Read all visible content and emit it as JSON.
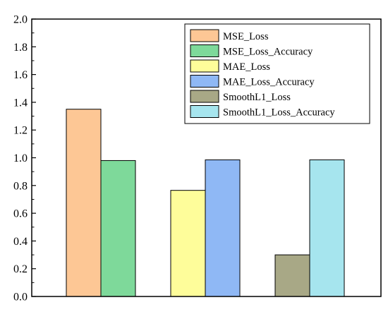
{
  "chart_data": {
    "type": "bar",
    "title": "",
    "xlabel": "",
    "ylabel": "",
    "ylim": [
      0,
      2.0
    ],
    "yticks": [
      "0.0",
      "0.2",
      "0.4",
      "0.6",
      "0.8",
      "1.0",
      "1.2",
      "1.4",
      "1.6",
      "1.8",
      "2.0"
    ],
    "grid": false,
    "legend_position": "top-right",
    "groups": [
      {
        "bars": [
          {
            "series": "MSE_Loss",
            "value": 1.35
          },
          {
            "series": "MSE_Loss_Accuracy",
            "value": 0.98
          }
        ]
      },
      {
        "bars": [
          {
            "series": "MAE_Loss",
            "value": 0.765
          },
          {
            "series": "MAE_Loss_Accuracy",
            "value": 0.985
          }
        ]
      },
      {
        "bars": [
          {
            "series": "SmoothL1_Loss",
            "value": 0.3
          },
          {
            "series": "SmoothL1_Loss_Accuracy",
            "value": 0.985
          }
        ]
      }
    ],
    "series": [
      {
        "name": "MSE_Loss",
        "color": "#fdc795"
      },
      {
        "name": "MSE_Loss_Accuracy",
        "color": "#7ed99a"
      },
      {
        "name": "MAE_Loss",
        "color": "#fefd9a"
      },
      {
        "name": "MAE_Loss_Accuracy",
        "color": "#8fb8f5"
      },
      {
        "name": "SmoothL1_Loss",
        "color": "#a8a886"
      },
      {
        "name": "SmoothL1_Loss_Accuracy",
        "color": "#a6e5ee"
      }
    ]
  }
}
